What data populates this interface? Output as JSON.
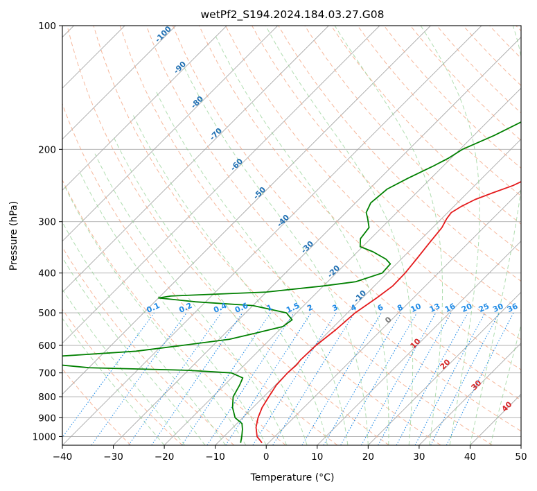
{
  "chart_data": {
    "type": "line",
    "title": "wetPf2_S194.2024.184.03.27.G08",
    "xlabel": "Temperature (°C)",
    "ylabel": "Pressure (hPa)",
    "xlim": [
      -40,
      50
    ],
    "ylim": [
      1050,
      100
    ],
    "y_scale": "log",
    "skew": "skew-T log-p",
    "grid": true,
    "x_ticks": [
      "−40",
      "−30",
      "−20",
      "−10",
      "0",
      "10",
      "20",
      "30",
      "40",
      "50"
    ],
    "y_ticks": [
      "100",
      "200",
      "300",
      "400",
      "500",
      "600",
      "700",
      "800",
      "900",
      "1000"
    ],
    "series": [
      {
        "color": "#e41a1c",
        "role": "temperature",
        "points": [
          [
            1036,
            -1.3
          ],
          [
            1000,
            -3.5
          ],
          [
            950,
            -5.5
          ],
          [
            900,
            -7.0
          ],
          [
            850,
            -8.2
          ],
          [
            800,
            -9.0
          ],
          [
            750,
            -9.8
          ],
          [
            700,
            -10.0
          ],
          [
            670,
            -9.8
          ],
          [
            650,
            -10.0
          ],
          [
            600,
            -9.8
          ],
          [
            550,
            -9.0
          ],
          [
            500,
            -8.5
          ],
          [
            460,
            -7.2
          ],
          [
            430,
            -6.4
          ],
          [
            400,
            -6.5
          ],
          [
            370,
            -7.0
          ],
          [
            340,
            -7.6
          ],
          [
            310,
            -8.2
          ],
          [
            295,
            -9.0
          ],
          [
            285,
            -9.3
          ],
          [
            275,
            -8.5
          ],
          [
            265,
            -7.2
          ],
          [
            255,
            -5.0
          ],
          [
            245,
            -2.5
          ],
          [
            230,
            0.0
          ],
          [
            215,
            1.5
          ],
          [
            200,
            2.6
          ],
          [
            170,
            6.2
          ],
          [
            150,
            10.5
          ],
          [
            130,
            15.0
          ],
          [
            115,
            18.3
          ],
          [
            105,
            19.5
          ],
          [
            100,
            20.0
          ]
        ]
      },
      {
        "color": "#008000",
        "role": "dewpoint",
        "points": [
          [
            1036,
            -5.5
          ],
          [
            1000,
            -6.5
          ],
          [
            960,
            -7.8
          ],
          [
            930,
            -9.0
          ],
          [
            900,
            -11.5
          ],
          [
            850,
            -14.0
          ],
          [
            800,
            -16.0
          ],
          [
            750,
            -17.0
          ],
          [
            720,
            -17.8
          ],
          [
            700,
            -21.0
          ],
          [
            690,
            -30.0
          ],
          [
            680,
            -50.0
          ],
          [
            650,
            -68.0
          ],
          [
            640,
            -60.0
          ],
          [
            620,
            -44.0
          ],
          [
            600,
            -36.0
          ],
          [
            580,
            -28.0
          ],
          [
            560,
            -24.0
          ],
          [
            540,
            -20.0
          ],
          [
            520,
            -19.5
          ],
          [
            500,
            -22.0
          ],
          [
            480,
            -30.0
          ],
          [
            470,
            -42.0
          ],
          [
            460,
            -50.0
          ],
          [
            455,
            -48.0
          ],
          [
            445,
            -30.0
          ],
          [
            430,
            -20.0
          ],
          [
            420,
            -14.5
          ],
          [
            400,
            -11.0
          ],
          [
            380,
            -11.2
          ],
          [
            370,
            -13.0
          ],
          [
            355,
            -17.0
          ],
          [
            345,
            -20.5
          ],
          [
            330,
            -22.0
          ],
          [
            310,
            -22.5
          ],
          [
            295,
            -24.5
          ],
          [
            285,
            -26.0
          ],
          [
            270,
            -27.0
          ],
          [
            250,
            -26.5
          ],
          [
            235,
            -24.5
          ],
          [
            220,
            -22.0
          ],
          [
            210,
            -20.5
          ],
          [
            200,
            -19.5
          ],
          [
            185,
            -16.0
          ],
          [
            170,
            -13.0
          ],
          [
            160,
            -11.0
          ],
          [
            150,
            -10.0
          ],
          [
            140,
            -9.0
          ],
          [
            130,
            -7.2
          ],
          [
            120,
            -5.5
          ],
          [
            110,
            -4.0
          ],
          [
            100,
            -2.0
          ]
        ]
      }
    ],
    "dry_adiabat_labels": [
      "-100",
      "-90",
      "-80",
      "-70",
      "-60",
      "-50",
      "-40",
      "-30",
      "-20",
      "-10"
    ],
    "mixing_ratio_labels": [
      "0.1",
      "0.2",
      "0.4",
      "0.6",
      "1",
      "1.5",
      "2",
      "3",
      "4",
      "6",
      "8",
      "10",
      "13",
      "16",
      "20",
      "25",
      "30",
      "36"
    ],
    "moist_adiabat_labels": [
      "0",
      "10",
      "20",
      "30",
      "40"
    ],
    "colors": {
      "temperature": "#e41a1c",
      "dewpoint": "#008000",
      "isotherm": "#a8a8a8",
      "dry_adiabat": "#f4a582",
      "moist_adiabat": "#8fce8f",
      "mixing_ratio": "#1f8ae6",
      "dry_adiabat_label": "#1f6fb2",
      "moist_adiabat_label": "#d62728",
      "background_adiabat": "#d4b48a"
    }
  }
}
